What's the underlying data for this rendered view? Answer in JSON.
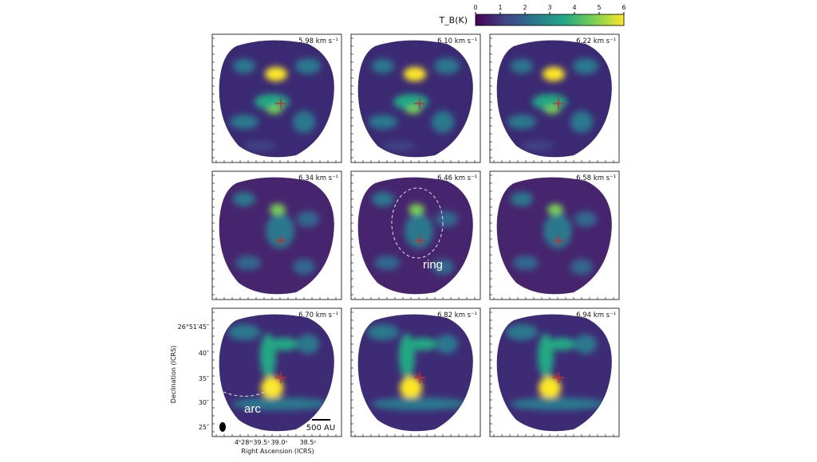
{
  "colorbar": {
    "label": "T_B(K)",
    "ticks": [
      0,
      1,
      2,
      3,
      4,
      5,
      6
    ]
  },
  "panels": [
    {
      "velocity": "5.98 km s⁻¹"
    },
    {
      "velocity": "6.10 km s⁻¹"
    },
    {
      "velocity": "6.22 km s⁻¹"
    },
    {
      "velocity": "6.34 km s⁻¹"
    },
    {
      "velocity": "6.46 km s⁻¹"
    },
    {
      "velocity": "6.58 km s⁻¹"
    },
    {
      "velocity": "6.70 km s⁻¹"
    },
    {
      "velocity": "6.82 km s⁻¹"
    },
    {
      "velocity": "6.94 km s⁻¹"
    }
  ],
  "annotations": {
    "ring": "ring",
    "arc": "arc",
    "scale_bar": "500 AU"
  },
  "axes": {
    "y_label": "Declination (ICRS)",
    "x_label": "Right Ascension (ICRS)",
    "y_ticks": [
      "26°51′45″",
      "40″",
      "35″",
      "30″",
      "25″"
    ],
    "x_ticks": [
      "4ʰ28ᵐ39.5ˢ",
      "39.0ˢ",
      "38.5ˢ"
    ]
  }
}
